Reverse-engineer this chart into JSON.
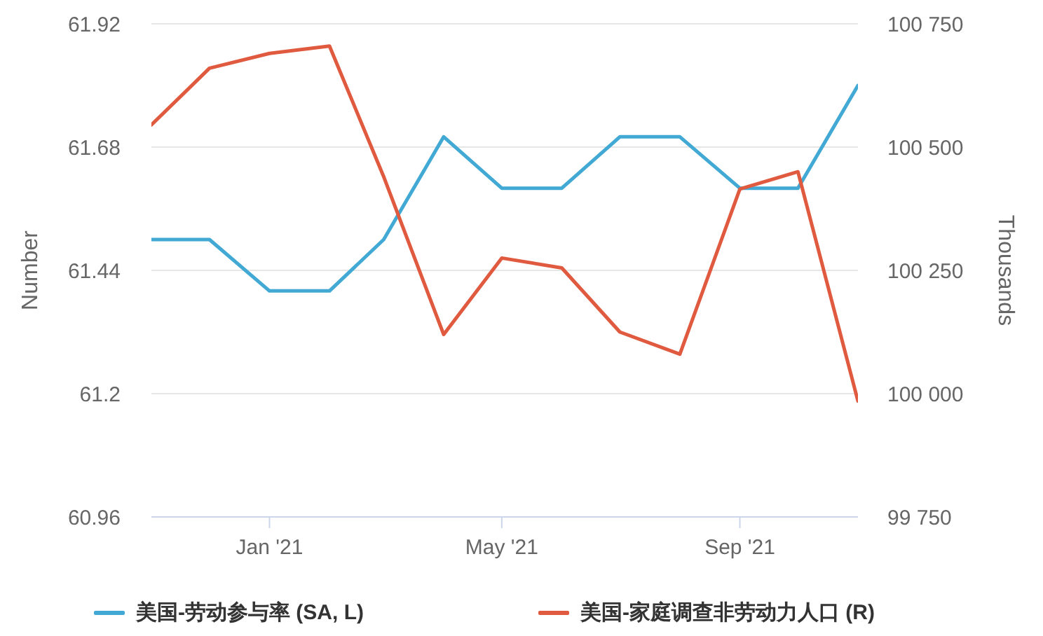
{
  "chart_data": {
    "type": "line",
    "x": [
      "2020-11",
      "2020-12",
      "2021-01",
      "2021-02",
      "2021-03",
      "2021-04",
      "2021-05",
      "2021-06",
      "2021-07",
      "2021-08",
      "2021-09",
      "2021-10",
      "2021-11"
    ],
    "xlim": [
      "2020-11",
      "2021-11"
    ],
    "xticks": [
      {
        "value": "2021-01",
        "label": "Jan '21"
      },
      {
        "value": "2021-05",
        "label": "May '21"
      },
      {
        "value": "2021-09",
        "label": "Sep '21"
      }
    ],
    "ylabel": "Number",
    "y2label": "Thousands",
    "ylim": [
      60.96,
      61.92
    ],
    "yticks": [
      60.96,
      61.2,
      61.44,
      61.68,
      61.92
    ],
    "y2lim": [
      99750,
      100750
    ],
    "y2ticks": [
      {
        "value": 99750,
        "label": "99 750"
      },
      {
        "value": 100000,
        "label": "100 000"
      },
      {
        "value": 100250,
        "label": "100 250"
      },
      {
        "value": 100500,
        "label": "100 500"
      },
      {
        "value": 100750,
        "label": "100 750"
      }
    ],
    "series": [
      {
        "name": "美国-劳动参与率 (SA, L)",
        "color": "#41a9d4",
        "values": [
          61.5,
          61.5,
          61.4,
          61.4,
          61.5,
          61.7,
          61.6,
          61.6,
          61.7,
          61.7,
          61.6,
          61.6,
          61.8
        ]
      },
      {
        "name": "美国-家庭调查非劳动力人口 (R)",
        "color": "#e05a3f",
        "axis": "y2",
        "values": [
          100545,
          100660,
          100690,
          100705,
          100440,
          100120,
          100275,
          100255,
          100125,
          100080,
          100415,
          100450,
          99985
        ]
      }
    ],
    "grid": "y",
    "legend": "bottom",
    "marker": "none",
    "line_style": "solid"
  }
}
